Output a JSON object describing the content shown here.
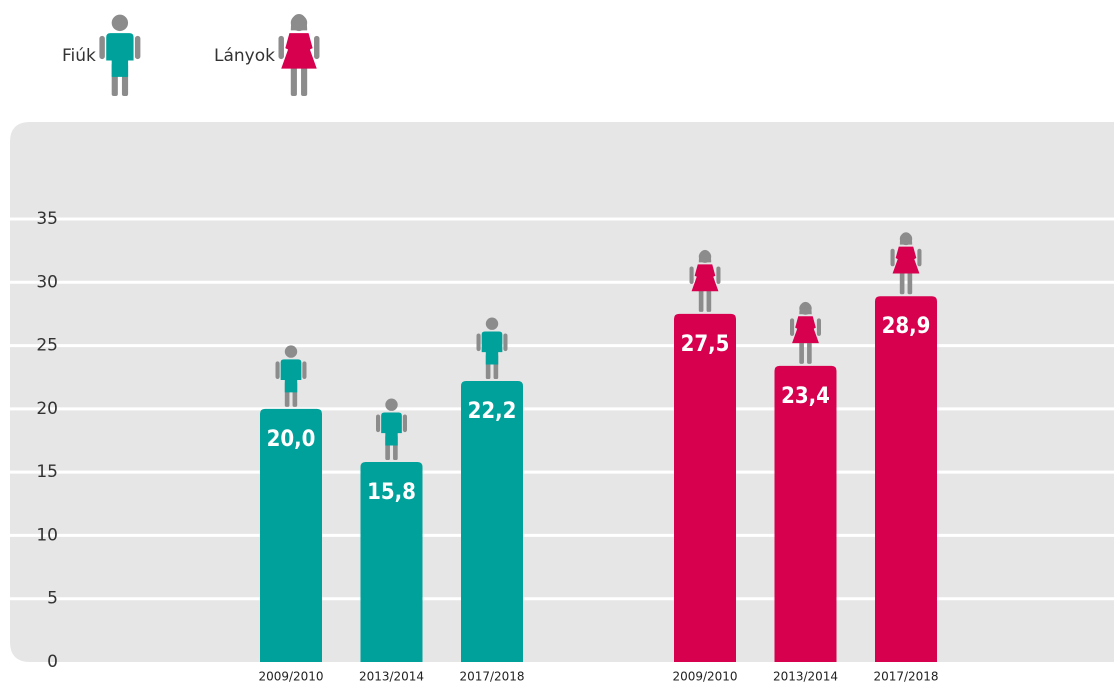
{
  "chart_data": {
    "type": "bar",
    "categories": [
      "2009/2010",
      "2013/2014",
      "2017/2018"
    ],
    "series": [
      {
        "name": "Fiúk",
        "color": "#00a19a",
        "values": [
          20.0,
          15.8,
          22.2
        ],
        "value_labels": [
          "20,0",
          "15,8",
          "22,2"
        ]
      },
      {
        "name": "Lányok",
        "color": "#d6004f",
        "values": [
          27.5,
          23.4,
          28.9
        ],
        "value_labels": [
          "27,5",
          "23,4",
          "28,9"
        ]
      }
    ],
    "ylim": [
      0,
      35
    ],
    "yticks": [
      0,
      5,
      10,
      15,
      20,
      25,
      30,
      35
    ],
    "grid": true
  }
}
